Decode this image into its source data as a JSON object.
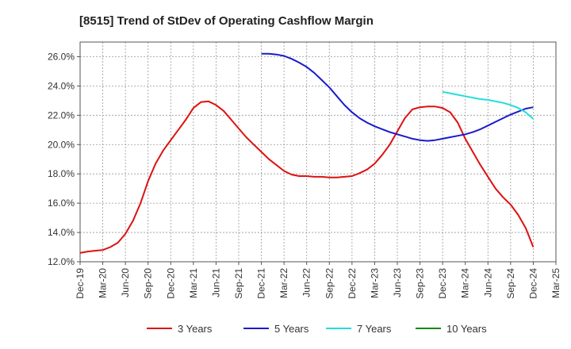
{
  "chart_data": {
    "type": "line",
    "title": "[8515]  Trend of StDev of Operating Cashflow Margin",
    "xlabel": "",
    "ylabel": "",
    "x_ticks": [
      "Dec-19",
      "Mar-20",
      "Jun-20",
      "Sep-20",
      "Dec-20",
      "Mar-21",
      "Jun-21",
      "Sep-21",
      "Dec-21",
      "Mar-22",
      "Jun-22",
      "Sep-22",
      "Dec-22",
      "Mar-23",
      "Jun-23",
      "Sep-23",
      "Dec-23",
      "Mar-24",
      "Jun-24",
      "Sep-24",
      "Dec-24",
      "Mar-25"
    ],
    "y_ticks": [
      "12.0%",
      "14.0%",
      "16.0%",
      "18.0%",
      "20.0%",
      "22.0%",
      "24.0%",
      "26.0%"
    ],
    "ylim": [
      12.0,
      27.0
    ],
    "grid": true,
    "legend_position": "bottom",
    "series": [
      {
        "name": "3 Years",
        "color": "#dd1111",
        "points": [
          [
            "Dec-19",
            12.6
          ],
          [
            "Jan-20",
            12.7
          ],
          [
            "Feb-20",
            12.75
          ],
          [
            "Mar-20",
            12.8
          ],
          [
            "Apr-20",
            13.0
          ],
          [
            "May-20",
            13.3
          ],
          [
            "Jun-20",
            13.9
          ],
          [
            "Jul-20",
            14.8
          ],
          [
            "Aug-20",
            16.0
          ],
          [
            "Sep-20",
            17.5
          ],
          [
            "Oct-20",
            18.7
          ],
          [
            "Nov-20",
            19.6
          ],
          [
            "Dec-20",
            20.3
          ],
          [
            "Jan-21",
            21.0
          ],
          [
            "Feb-21",
            21.7
          ],
          [
            "Mar-21",
            22.5
          ],
          [
            "Apr-21",
            22.9
          ],
          [
            "May-21",
            22.95
          ],
          [
            "Jun-21",
            22.7
          ],
          [
            "Jul-21",
            22.3
          ],
          [
            "Aug-21",
            21.7
          ],
          [
            "Sep-21",
            21.1
          ],
          [
            "Oct-21",
            20.5
          ],
          [
            "Nov-21",
            20.0
          ],
          [
            "Dec-21",
            19.5
          ],
          [
            "Jan-22",
            19.0
          ],
          [
            "Feb-22",
            18.6
          ],
          [
            "Mar-22",
            18.2
          ],
          [
            "Apr-22",
            17.95
          ],
          [
            "May-22",
            17.85
          ],
          [
            "Jun-22",
            17.85
          ],
          [
            "Jul-22",
            17.8
          ],
          [
            "Aug-22",
            17.8
          ],
          [
            "Sep-22",
            17.75
          ],
          [
            "Oct-22",
            17.75
          ],
          [
            "Nov-22",
            17.8
          ],
          [
            "Dec-22",
            17.85
          ],
          [
            "Jan-23",
            18.05
          ],
          [
            "Feb-23",
            18.3
          ],
          [
            "Mar-23",
            18.7
          ],
          [
            "Apr-23",
            19.3
          ],
          [
            "May-23",
            20.0
          ],
          [
            "Jun-23",
            20.9
          ],
          [
            "Jul-23",
            21.8
          ],
          [
            "Aug-23",
            22.4
          ],
          [
            "Sep-23",
            22.55
          ],
          [
            "Oct-23",
            22.6
          ],
          [
            "Nov-23",
            22.6
          ],
          [
            "Dec-23",
            22.5
          ],
          [
            "Jan-24",
            22.2
          ],
          [
            "Feb-24",
            21.5
          ],
          [
            "Mar-24",
            20.4
          ],
          [
            "Apr-24",
            19.5
          ],
          [
            "May-24",
            18.6
          ],
          [
            "Jun-24",
            17.8
          ],
          [
            "Jul-24",
            17.0
          ],
          [
            "Aug-24",
            16.4
          ],
          [
            "Sep-24",
            15.9
          ],
          [
            "Oct-24",
            15.2
          ],
          [
            "Nov-24",
            14.3
          ],
          [
            "Dec-24",
            13.0
          ]
        ]
      },
      {
        "name": "5 Years",
        "color": "#1a1acc",
        "points": [
          [
            "Dec-21",
            26.2
          ],
          [
            "Jan-22",
            26.2
          ],
          [
            "Feb-22",
            26.15
          ],
          [
            "Mar-22",
            26.05
          ],
          [
            "Apr-22",
            25.85
          ],
          [
            "May-22",
            25.6
          ],
          [
            "Jun-22",
            25.3
          ],
          [
            "Jul-22",
            24.9
          ],
          [
            "Aug-22",
            24.4
          ],
          [
            "Sep-22",
            23.9
          ],
          [
            "Oct-22",
            23.3
          ],
          [
            "Nov-22",
            22.7
          ],
          [
            "Dec-22",
            22.2
          ],
          [
            "Jan-23",
            21.8
          ],
          [
            "Feb-23",
            21.5
          ],
          [
            "Mar-23",
            21.25
          ],
          [
            "Apr-23",
            21.05
          ],
          [
            "May-23",
            20.85
          ],
          [
            "Jun-23",
            20.7
          ],
          [
            "Jul-23",
            20.55
          ],
          [
            "Aug-23",
            20.4
          ],
          [
            "Sep-23",
            20.3
          ],
          [
            "Oct-23",
            20.25
          ],
          [
            "Nov-23",
            20.3
          ],
          [
            "Dec-23",
            20.4
          ],
          [
            "Jan-24",
            20.5
          ],
          [
            "Feb-24",
            20.6
          ],
          [
            "Mar-24",
            20.7
          ],
          [
            "Apr-24",
            20.85
          ],
          [
            "May-24",
            21.05
          ],
          [
            "Jun-24",
            21.3
          ],
          [
            "Jul-24",
            21.55
          ],
          [
            "Aug-24",
            21.8
          ],
          [
            "Sep-24",
            22.05
          ],
          [
            "Oct-24",
            22.25
          ],
          [
            "Nov-24",
            22.45
          ],
          [
            "Dec-24",
            22.55
          ]
        ]
      },
      {
        "name": "7 Years",
        "color": "#22dddd",
        "points": [
          [
            "Dec-23",
            23.6
          ],
          [
            "Jan-24",
            23.5
          ],
          [
            "Feb-24",
            23.4
          ],
          [
            "Mar-24",
            23.3
          ],
          [
            "Apr-24",
            23.2
          ],
          [
            "May-24",
            23.1
          ],
          [
            "Jun-24",
            23.05
          ],
          [
            "Jul-24",
            22.95
          ],
          [
            "Aug-24",
            22.85
          ],
          [
            "Sep-24",
            22.7
          ],
          [
            "Oct-24",
            22.5
          ],
          [
            "Nov-24",
            22.2
          ],
          [
            "Dec-24",
            21.75
          ]
        ]
      },
      {
        "name": "10 Years",
        "color": "#118811",
        "points": []
      }
    ]
  }
}
